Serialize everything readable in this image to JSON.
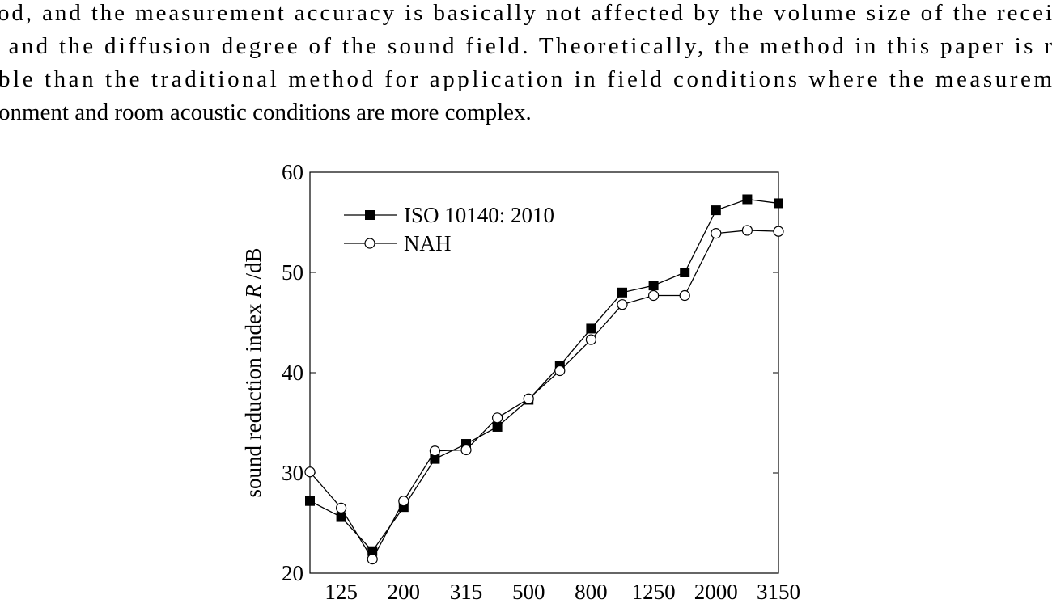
{
  "text": {
    "lines": [
      "od, and the measurement accuracy is basically not affected by the volume size of the recei",
      " and the diffusion degree of the sound field. Theoretically, the method in this paper is r",
      "ble than the traditional method for application in field conditions where the measurem",
      "onment and room acoustic conditions are more complex."
    ]
  },
  "chart_data": {
    "type": "line",
    "ylabel": "sound reduction index ",
    "ylabel_symbol": "R",
    "ylabel_unit": " /dB",
    "categories": [
      null,
      "125",
      null,
      "200",
      null,
      "315",
      null,
      "500",
      null,
      "800",
      null,
      "1250",
      null,
      "2000",
      null,
      "3150"
    ],
    "ylim": [
      20,
      60
    ],
    "yticks": [
      20,
      30,
      40,
      50,
      60
    ],
    "series": [
      {
        "name": "ISO 10140: 2010",
        "color": "#000000",
        "marker": "square",
        "values": [
          27.2,
          25.6,
          22.2,
          26.6,
          31.4,
          32.9,
          34.6,
          37.3,
          40.7,
          44.4,
          48.0,
          48.7,
          50.0,
          56.2,
          57.3,
          56.9
        ]
      },
      {
        "name": "NAH",
        "color": "#000000",
        "marker": "circle",
        "values": [
          30.1,
          26.5,
          21.4,
          27.2,
          32.2,
          32.3,
          35.5,
          37.4,
          40.2,
          43.3,
          46.8,
          47.7,
          47.7,
          53.9,
          54.2,
          54.1
        ]
      }
    ]
  }
}
